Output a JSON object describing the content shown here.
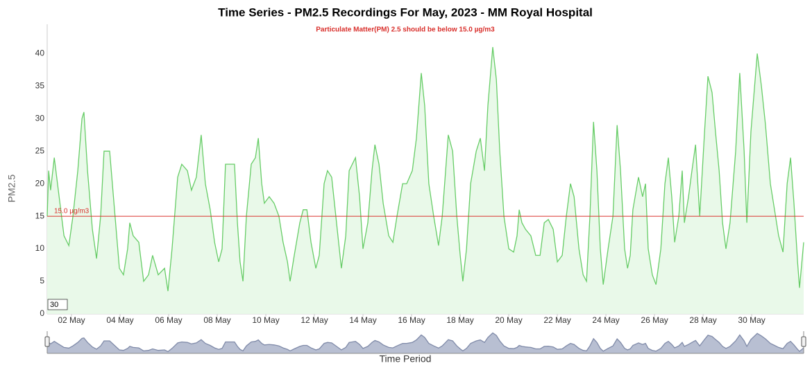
{
  "chart_data": {
    "type": "area",
    "title": "Time Series - PM2.5 Recordings For May, 2023 - MM Royal Hospital",
    "subtitle": "Particulate Matter(PM) 2.5 should be below 15.0 µg/m3",
    "y_label": "PM2.5",
    "x_label": "Time Period",
    "zoom_box": "30",
    "color": "#66cc66",
    "fill": "#e9f9e9",
    "threshold": {
      "value": 15,
      "label": "15.0 µg/m3",
      "color": "#d9302c"
    },
    "navigator": true,
    "xlim": [
      1,
      32.14
    ],
    "ylim": [
      0,
      44.5
    ],
    "yticks": [
      0,
      5,
      10,
      15,
      20,
      25,
      30,
      35,
      40
    ],
    "xticks": [
      {
        "value": 2,
        "label": "02 May"
      },
      {
        "value": 4,
        "label": "04 May"
      },
      {
        "value": 6,
        "label": "06 May"
      },
      {
        "value": 8,
        "label": "08 May"
      },
      {
        "value": 10,
        "label": "10 May"
      },
      {
        "value": 12,
        "label": "12 May"
      },
      {
        "value": 14,
        "label": "14 May"
      },
      {
        "value": 16,
        "label": "16 May"
      },
      {
        "value": 18,
        "label": "18 May"
      },
      {
        "value": 20,
        "label": "20 May"
      },
      {
        "value": 22,
        "label": "22 May"
      },
      {
        "value": 24,
        "label": "24 May"
      },
      {
        "value": 26,
        "label": "26 May"
      },
      {
        "value": 28,
        "label": "28 May"
      },
      {
        "value": 30,
        "label": "30 May"
      }
    ],
    "x": [
      1.0,
      1.06,
      1.14,
      1.29,
      1.49,
      1.69,
      1.89,
      2.06,
      2.26,
      2.43,
      2.51,
      2.66,
      2.86,
      3.03,
      3.2,
      3.34,
      3.57,
      3.77,
      3.97,
      4.14,
      4.31,
      4.4,
      4.54,
      4.77,
      4.97,
      5.17,
      5.34,
      5.57,
      5.83,
      5.97,
      6.14,
      6.37,
      6.54,
      6.77,
      6.94,
      7.14,
      7.34,
      7.51,
      7.71,
      7.89,
      8.06,
      8.2,
      8.34,
      8.71,
      8.83,
      8.94,
      9.06,
      9.2,
      9.4,
      9.57,
      9.69,
      9.83,
      9.94,
      10.14,
      10.34,
      10.54,
      10.71,
      10.89,
      11.0,
      11.17,
      11.4,
      11.54,
      11.69,
      11.86,
      12.06,
      12.2,
      12.4,
      12.54,
      12.71,
      12.91,
      13.11,
      13.29,
      13.43,
      13.69,
      13.86,
      14.0,
      14.2,
      14.37,
      14.49,
      14.66,
      14.83,
      15.06,
      15.23,
      15.4,
      15.63,
      15.8,
      16.03,
      16.2,
      16.4,
      16.54,
      16.71,
      16.91,
      17.11,
      17.26,
      17.4,
      17.51,
      17.69,
      17.86,
      18.0,
      18.11,
      18.26,
      18.43,
      18.66,
      18.83,
      19.0,
      19.14,
      19.34,
      19.49,
      19.63,
      19.8,
      20.0,
      20.2,
      20.34,
      20.43,
      20.54,
      20.69,
      20.91,
      21.11,
      21.29,
      21.46,
      21.63,
      21.83,
      22.0,
      22.2,
      22.37,
      22.54,
      22.69,
      22.89,
      23.06,
      23.2,
      23.34,
      23.49,
      23.63,
      23.77,
      23.89,
      24.09,
      24.29,
      24.46,
      24.6,
      24.77,
      24.89,
      25.0,
      25.11,
      25.34,
      25.51,
      25.63,
      25.74,
      25.91,
      26.06,
      26.26,
      26.43,
      26.57,
      26.71,
      26.83,
      27.0,
      27.14,
      27.23,
      27.4,
      27.54,
      27.69,
      27.86,
      28.06,
      28.2,
      28.37,
      28.51,
      28.66,
      28.8,
      28.94,
      29.11,
      29.34,
      29.51,
      29.69,
      29.8,
      29.97,
      30.23,
      30.4,
      30.57,
      30.77,
      30.94,
      31.11,
      31.29,
      31.46,
      31.6,
      31.74,
      31.89,
      31.97,
      32.14
    ],
    "values": [
      15,
      22,
      19,
      24,
      18,
      12,
      10.5,
      15,
      22,
      30,
      31,
      22,
      13,
      8.5,
      15,
      25,
      25,
      16,
      7,
      6,
      10,
      14,
      12,
      11,
      5,
      6,
      9,
      6,
      7,
      3.5,
      10,
      21,
      23,
      22,
      19,
      21,
      27.5,
      20,
      16,
      11,
      8,
      10,
      23,
      23,
      14,
      8,
      5,
      15,
      23,
      24,
      27,
      20,
      17,
      18,
      17,
      15,
      11,
      8,
      5,
      9,
      14,
      16,
      16,
      11,
      7,
      9,
      20,
      22,
      21,
      14,
      7,
      12,
      22,
      24,
      18,
      10,
      14,
      22,
      26,
      23,
      17,
      12,
      11,
      15,
      20,
      20,
      22,
      27,
      37,
      32,
      20,
      15,
      10.5,
      15,
      22,
      27.5,
      25,
      15,
      9,
      5,
      10,
      20,
      25,
      27,
      22,
      32,
      41,
      36,
      25,
      15,
      10,
      9.5,
      12,
      16,
      14,
      13,
      12,
      9,
      9,
      14,
      14.5,
      13,
      8,
      9,
      15,
      20,
      18,
      10,
      6,
      5,
      15,
      29.5,
      22,
      10,
      4.5,
      10,
      15,
      29,
      22,
      10,
      7,
      9,
      16,
      21,
      18,
      20,
      10,
      6,
      4.5,
      10,
      20,
      24,
      18,
      11,
      15,
      22,
      14,
      18,
      22,
      26,
      15,
      28,
      36.5,
      34,
      28,
      22,
      14,
      10,
      14,
      25,
      37,
      25,
      14,
      28,
      40,
      35,
      29,
      20,
      16,
      12,
      9.5,
      20,
      24,
      17,
      8,
      4,
      11
    ]
  }
}
